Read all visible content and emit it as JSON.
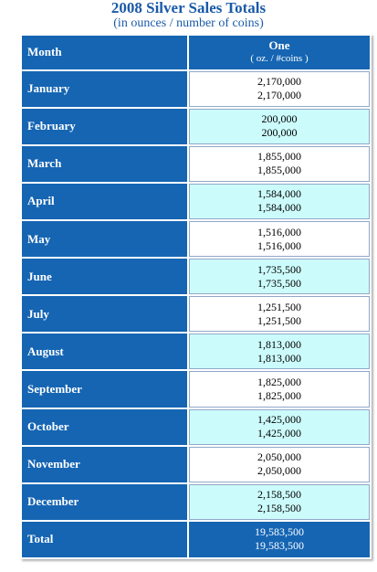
{
  "header": {
    "title": "2008 Silver Sales Totals",
    "subtitle": "(in ounces / number of coins)"
  },
  "table": {
    "col_month": "Month",
    "col_value": "One",
    "col_value_sub": "( oz. / #coins )",
    "rows": [
      {
        "month": "January",
        "oz": "2,170,000",
        "coins": "2,170,000"
      },
      {
        "month": "February",
        "oz": "200,000",
        "coins": "200,000"
      },
      {
        "month": "March",
        "oz": "1,855,000",
        "coins": "1,855,000"
      },
      {
        "month": "April",
        "oz": "1,584,000",
        "coins": "1,584,000"
      },
      {
        "month": "May",
        "oz": "1,516,000",
        "coins": "1,516,000"
      },
      {
        "month": "June",
        "oz": "1,735,500",
        "coins": "1,735,500"
      },
      {
        "month": "July",
        "oz": "1,251,500",
        "coins": "1,251,500"
      },
      {
        "month": "August",
        "oz": "1,813,000",
        "coins": "1,813,000"
      },
      {
        "month": "September",
        "oz": "1,825,000",
        "coins": "1,825,000"
      },
      {
        "month": "October",
        "oz": "1,425,000",
        "coins": "1,425,000"
      },
      {
        "month": "November",
        "oz": "2,050,000",
        "coins": "2,050,000"
      },
      {
        "month": "December",
        "oz": "2,158,500",
        "coins": "2,158,500"
      }
    ],
    "total": {
      "label": "Total",
      "oz": "19,583,500",
      "coins": "19,583,500"
    }
  },
  "colors": {
    "header_blue": "#1565b3",
    "title_blue": "#1a5aa8",
    "alt_row": "#ccfbfb",
    "white_row": "#ffffff"
  }
}
